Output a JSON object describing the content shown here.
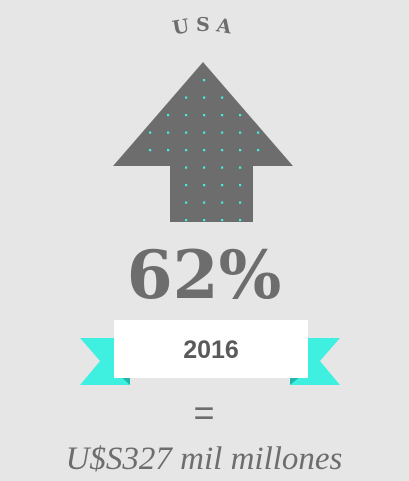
{
  "header": {
    "country": "USA"
  },
  "stat": {
    "value": "62%",
    "year": "2016",
    "equals": "=",
    "amount": "U$S327 mil millones"
  }
}
